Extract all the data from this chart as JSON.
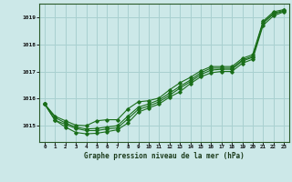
{
  "title": "Graphe pression niveau de la mer (hPa)",
  "bg_color": "#cce8e8",
  "grid_color": "#a8d0d0",
  "line_color": "#1a6e1a",
  "x_ticks": [
    0,
    1,
    2,
    3,
    4,
    5,
    6,
    7,
    8,
    9,
    10,
    11,
    12,
    13,
    14,
    15,
    16,
    17,
    18,
    19,
    20,
    21,
    22,
    23
  ],
  "ylim": [
    1014.4,
    1019.5
  ],
  "yticks": [
    1015,
    1016,
    1017,
    1018,
    1019
  ],
  "series": [
    [
      1015.8,
      1015.2,
      1014.95,
      1014.75,
      1014.7,
      1014.72,
      1014.78,
      1014.85,
      1015.1,
      1015.5,
      1015.65,
      1015.8,
      1016.05,
      1016.25,
      1016.55,
      1016.8,
      1016.95,
      1017.0,
      1017.0,
      1017.3,
      1017.45,
      1018.7,
      1019.05,
      1019.2
    ],
    [
      1015.8,
      1015.2,
      1015.05,
      1014.9,
      1014.82,
      1014.82,
      1014.88,
      1014.92,
      1015.25,
      1015.6,
      1015.72,
      1015.88,
      1016.12,
      1016.38,
      1016.62,
      1016.88,
      1017.05,
      1017.08,
      1017.08,
      1017.38,
      1017.52,
      1018.78,
      1019.12,
      1019.22
    ],
    [
      1015.8,
      1015.3,
      1015.1,
      1014.95,
      1014.88,
      1014.9,
      1014.95,
      1015.0,
      1015.35,
      1015.68,
      1015.8,
      1015.95,
      1016.2,
      1016.45,
      1016.68,
      1016.95,
      1017.12,
      1017.12,
      1017.12,
      1017.42,
      1017.56,
      1018.8,
      1019.15,
      1019.25
    ],
    [
      1015.8,
      1015.35,
      1015.18,
      1015.02,
      1015.0,
      1015.18,
      1015.22,
      1015.22,
      1015.62,
      1015.88,
      1015.92,
      1016.02,
      1016.32,
      1016.58,
      1016.78,
      1017.02,
      1017.18,
      1017.18,
      1017.18,
      1017.48,
      1017.62,
      1018.85,
      1019.2,
      1019.28
    ]
  ]
}
